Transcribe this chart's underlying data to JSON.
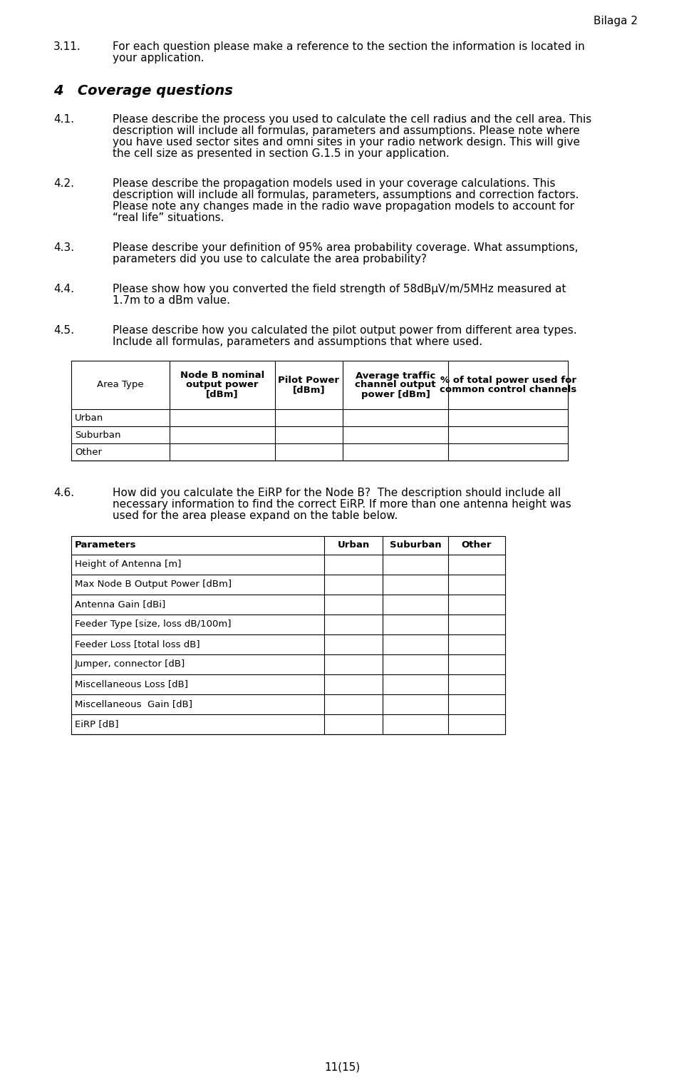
{
  "page_header": "Bilaga 2",
  "page_footer": "11(15)",
  "background_color": "#ffffff",
  "text_color": "#000000",
  "section_311": {
    "number": "3.11.",
    "text": "For each question please make a reference to the section the information is located in\nyour application."
  },
  "section_heading": "4   Coverage questions",
  "section_41": {
    "number": "4.1.",
    "text": "Please describe the process you used to calculate the cell radius and the cell area. This\ndescription will include all formulas, parameters and assumptions. Please note where\nyou have used sector sites and omni sites in your radio network design. This will give\nthe cell size as presented in section G.1.5 in your application."
  },
  "section_42": {
    "number": "4.2.",
    "text": "Please describe the propagation models used in your coverage calculations. This\ndescription will include all formulas, parameters, assumptions and correction factors.\nPlease note any changes made in the radio wave propagation models to account for\n“real life” situations."
  },
  "section_43": {
    "number": "4.3.",
    "text": "Please describe your definition of 95% area probability coverage. What assumptions,\nparameters did you use to calculate the area probability?"
  },
  "section_44": {
    "number": "4.4.",
    "text": "Please show how you converted the field strength of 58dBμV/m/5MHz measured at\n1.7m to a dBm value."
  },
  "section_45": {
    "number": "4.5.",
    "text": "Please describe how you calculated the pilot output power from different area types.\nInclude all formulas, parameters and assumptions that where used."
  },
  "table1_headers": [
    "Area Type",
    "Node B nominal\noutput power\n[dBm]",
    "Pilot Power\n[dBm]",
    "Average traffic\nchannel output\npower [dBm]",
    "% of total power used for\ncommon control channels"
  ],
  "table1_rows": [
    "Urban",
    "Suburban",
    "Other"
  ],
  "section_46": {
    "number": "4.6.",
    "text": "How did you calculate the EiRP for the Node B?  The description should include all\nnecessary information to find the correct EiRP. If more than one antenna height was\nused for the area please expand on the table below."
  },
  "table2_headers": [
    "Parameters",
    "Urban",
    "Suburban",
    "Other"
  ],
  "table2_rows": [
    "Height of Antenna [m]",
    "Max Node B Output Power [dBm]",
    "Antenna Gain [dBi]",
    "Feeder Type [size, loss dB/100m]",
    "Feeder Loss [total loss dB]",
    "Jumper, connector [dB]",
    "Miscellaneous Loss [dB]",
    "Miscellaneous  Gain [dB]",
    "EiRP [dB]"
  ]
}
